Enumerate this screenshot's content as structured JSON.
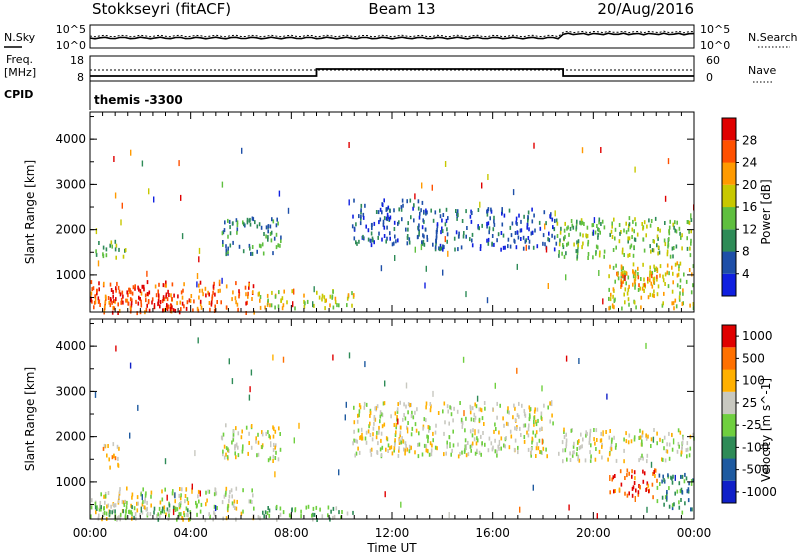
{
  "header": {
    "station": "Stokkseyri (fitACF)",
    "beam": "Beam 13",
    "date": "20/Aug/2016"
  },
  "noise_panel": {
    "left_label": "N.Sky",
    "left_ticks": [
      "10^5",
      "10^0"
    ],
    "right_label": "N.Search",
    "right_ticks": [
      "10^5",
      "10^0"
    ]
  },
  "freq_panel": {
    "left_label_line1": "Freq.",
    "left_label_line2": "[MHz]",
    "left_ticks": [
      "18",
      "8"
    ],
    "right_label": "Nave",
    "right_ticks": [
      "60",
      "0"
    ]
  },
  "cpid_panel": {
    "label": "CPID",
    "value": "themis -3300"
  },
  "time_axis": {
    "title": "Time UT",
    "ticks": [
      "00:00",
      "04:00",
      "08:00",
      "12:00",
      "16:00",
      "20:00",
      "00:00"
    ]
  },
  "power_panel": {
    "ylabel": "Slant Range [km]",
    "yticks": [
      "4000",
      "3000",
      "2000",
      "1000"
    ],
    "colorbar_label": "Power [dB]",
    "colorbar_ticks": [
      "28",
      "24",
      "20",
      "16",
      "12",
      "8",
      "4"
    ],
    "colors": [
      "#1020e0",
      "#1e4fa8",
      "#2e8b57",
      "#5fbf3f",
      "#c8c800",
      "#ff9a00",
      "#ff5000",
      "#e00000"
    ]
  },
  "velocity_panel": {
    "ylabel": "Slant Range [km]",
    "yticks": [
      "4000",
      "3000",
      "2000",
      "1000"
    ],
    "colorbar_label": "Velocity [m s^-1]",
    "colorbar_ticks": [
      "1000",
      "500",
      "100",
      "25",
      "-25",
      "-100",
      "-500",
      "-1000"
    ],
    "colors": [
      "#1020c8",
      "#1e5aa0",
      "#2e8b57",
      "#6fcf3f",
      "#c8c8c0",
      "#ffb000",
      "#ff7000",
      "#e00000"
    ]
  },
  "chart_data": {
    "type": "heatmap",
    "x_range_hours": [
      0,
      24
    ],
    "y_range_km": [
      180,
      4600
    ],
    "power_blobs": [
      {
        "t0": 0.0,
        "t1": 6.5,
        "r0": 200,
        "r1": 900,
        "level": 6
      },
      {
        "t0": 0.0,
        "t1": 2.5,
        "r0": 400,
        "r1": 800,
        "level": 7
      },
      {
        "t0": 2.6,
        "t1": 3.6,
        "r0": 200,
        "r1": 700,
        "level": 7
      },
      {
        "t0": 0.2,
        "t1": 1.4,
        "r0": 1400,
        "r1": 1800,
        "level": 3
      },
      {
        "t0": 5.2,
        "t1": 7.6,
        "r0": 1500,
        "r1": 2300,
        "level": 2
      },
      {
        "t0": 6.6,
        "t1": 10.5,
        "r0": 300,
        "r1": 700,
        "level": 4
      },
      {
        "t0": 10.4,
        "t1": 13.2,
        "r0": 1700,
        "r1": 2700,
        "level": 1
      },
      {
        "t0": 13.0,
        "t1": 18.5,
        "r0": 1600,
        "r1": 2500,
        "level": 1
      },
      {
        "t0": 18.5,
        "t1": 24.0,
        "r0": 1400,
        "r1": 2300,
        "level": 3
      },
      {
        "t0": 20.5,
        "t1": 24.0,
        "r0": 300,
        "r1": 1300,
        "level": 4
      },
      {
        "t0": 20.8,
        "t1": 22.5,
        "r0": 800,
        "r1": 1200,
        "level": 5
      }
    ],
    "velocity_blobs": [
      {
        "t0": 0.0,
        "t1": 6.5,
        "r0": 200,
        "r1": 900,
        "level": 4
      },
      {
        "t0": 0.0,
        "t1": 4.0,
        "r0": 200,
        "r1": 600,
        "level": 3
      },
      {
        "t0": 0.5,
        "t1": 1.2,
        "r0": 1300,
        "r1": 1900,
        "level": 5
      },
      {
        "t0": 5.2,
        "t1": 7.6,
        "r0": 1500,
        "r1": 2300,
        "level": 4
      },
      {
        "t0": 6.6,
        "t1": 10.5,
        "r0": 200,
        "r1": 500,
        "level": 3
      },
      {
        "t0": 10.4,
        "t1": 18.5,
        "r0": 1600,
        "r1": 2800,
        "level": 4
      },
      {
        "t0": 18.5,
        "t1": 24.0,
        "r0": 1500,
        "r1": 2200,
        "level": 4
      },
      {
        "t0": 20.5,
        "t1": 22.5,
        "r0": 700,
        "r1": 1300,
        "level": 6
      },
      {
        "t0": 22.5,
        "t1": 24.0,
        "r0": 300,
        "r1": 1200,
        "level": 2
      }
    ]
  }
}
